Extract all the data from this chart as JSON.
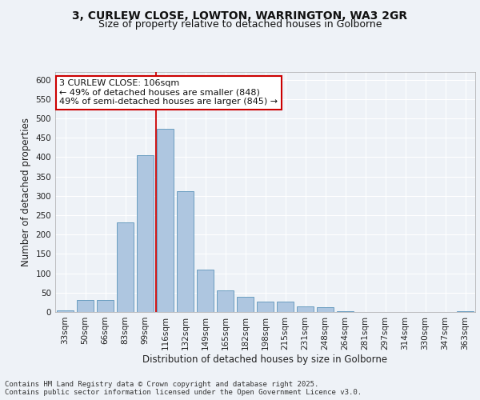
{
  "title_line1": "3, CURLEW CLOSE, LOWTON, WARRINGTON, WA3 2GR",
  "title_line2": "Size of property relative to detached houses in Golborne",
  "xlabel": "Distribution of detached houses by size in Golborne",
  "ylabel": "Number of detached properties",
  "footer_line1": "Contains HM Land Registry data © Crown copyright and database right 2025.",
  "footer_line2": "Contains public sector information licensed under the Open Government Licence v3.0.",
  "categories": [
    "33sqm",
    "50sqm",
    "66sqm",
    "83sqm",
    "99sqm",
    "116sqm",
    "132sqm",
    "149sqm",
    "165sqm",
    "182sqm",
    "198sqm",
    "215sqm",
    "231sqm",
    "248sqm",
    "264sqm",
    "281sqm",
    "297sqm",
    "314sqm",
    "330sqm",
    "347sqm",
    "363sqm"
  ],
  "values": [
    5,
    30,
    30,
    232,
    405,
    473,
    312,
    110,
    55,
    40,
    27,
    27,
    15,
    12,
    3,
    0,
    0,
    0,
    0,
    0,
    3
  ],
  "bar_color": "#aec6e0",
  "bar_edge_color": "#6a9ec0",
  "vline_x_index": 4.55,
  "vline_color": "#cc0000",
  "annotation_line1": "3 CURLEW CLOSE: 106sqm",
  "annotation_line2": "← 49% of detached houses are smaller (848)",
  "annotation_line3": "49% of semi-detached houses are larger (845) →",
  "annotation_box_edge": "#cc0000",
  "annotation_box_bg": "#ffffff",
  "ylim": [
    0,
    620
  ],
  "yticks": [
    0,
    50,
    100,
    150,
    200,
    250,
    300,
    350,
    400,
    450,
    500,
    550,
    600
  ],
  "background_color": "#eef2f7",
  "grid_color": "#ffffff",
  "title_fontsize": 10,
  "subtitle_fontsize": 9,
  "axis_label_fontsize": 8.5,
  "tick_fontsize": 7.5,
  "footer_fontsize": 6.5,
  "annotation_fontsize": 8
}
